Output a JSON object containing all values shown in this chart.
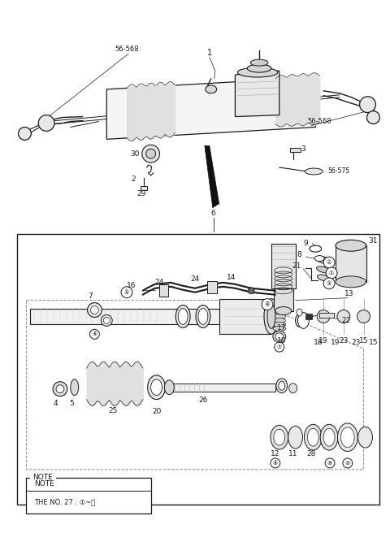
{
  "bg_color": "#ffffff",
  "line_color": "#1a1a1a",
  "fig_width": 4.8,
  "fig_height": 6.56,
  "dpi": 100,
  "note_line1": "NOTE",
  "note_line2": "THE NO. 27 : ①~⑯"
}
